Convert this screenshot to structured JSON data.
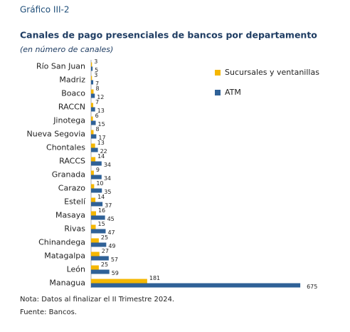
{
  "chart_data": {
    "type": "hbar",
    "label": "Gráfico III-2",
    "title": "Canales de pago presenciales de bancos por departamento",
    "subtitle": "(en número de canales)",
    "categories": [
      "Río San Juan",
      "Madriz",
      "Boaco",
      "RACCN",
      "Jinotega",
      "Nueva Segovia",
      "Chontales",
      "RACCS",
      "Granada",
      "Carazo",
      "Estelí",
      "Masaya",
      "Rivas",
      "Chinandega",
      "Matagalpa",
      "León",
      "Managua"
    ],
    "series": [
      {
        "name": "Sucursales y ventanillas",
        "color": "#f5b700",
        "values": [
          3,
          3,
          8,
          7,
          6,
          8,
          13,
          14,
          9,
          10,
          14,
          16,
          15,
          25,
          27,
          25,
          181
        ]
      },
      {
        "name": "ATM",
        "color": "#2f6197",
        "values": [
          5,
          7,
          12,
          13,
          15,
          17,
          22,
          34,
          34,
          35,
          37,
          45,
          47,
          49,
          57,
          59,
          675
        ]
      }
    ],
    "xlim": [
      0,
      700
    ],
    "notes": [
      "Nota: Datos al finalizar el II Trimestre 2024.",
      "Fuente: Bancos."
    ]
  }
}
